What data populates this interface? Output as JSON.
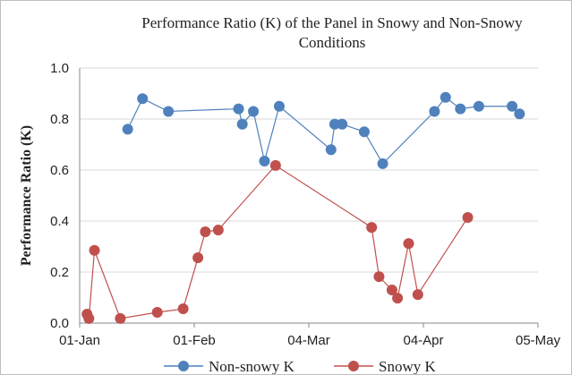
{
  "chart_data": {
    "type": "line",
    "title": "Performance Ratio (K) of the Panel in Snowy and Non-Snowy Conditions",
    "ylabel": "Performance Ratio (K)",
    "xlim": [
      0,
      124
    ],
    "xticks": [
      {
        "value": 0,
        "label": "01-Jan"
      },
      {
        "value": 31,
        "label": "01-Feb"
      },
      {
        "value": 62,
        "label": "04-Mar"
      },
      {
        "value": 93,
        "label": "04-Apr"
      },
      {
        "value": 124,
        "label": "05-May"
      }
    ],
    "ylim": [
      0,
      1
    ],
    "yticks": [
      {
        "value": 0,
        "label": "0.0"
      },
      {
        "value": 0.2,
        "label": "0.2"
      },
      {
        "value": 0.4,
        "label": "0.4"
      },
      {
        "value": 0.6,
        "label": "0.6"
      },
      {
        "value": 0.8,
        "label": "0.8"
      },
      {
        "value": 1,
        "label": "1.0"
      }
    ],
    "grid": true,
    "legend": "bottom",
    "series": [
      {
        "name": "Non-snowy K",
        "color": "#4f81bd",
        "x": [
          13,
          17,
          24,
          43,
          44,
          47,
          50,
          54,
          68,
          69,
          71,
          77,
          82,
          96,
          99,
          103,
          108,
          117,
          119
        ],
        "values": [
          0.76,
          0.88,
          0.83,
          0.84,
          0.78,
          0.83,
          0.635,
          0.85,
          0.68,
          0.78,
          0.78,
          0.75,
          0.625,
          0.83,
          0.885,
          0.84,
          0.85,
          0.85,
          0.82
        ]
      },
      {
        "name": "Snowy K",
        "color": "#c0504d",
        "x": [
          2,
          2.5,
          4,
          11,
          21,
          28,
          32,
          34,
          37.5,
          53,
          79,
          81,
          84.5,
          86,
          89,
          91.5,
          105
        ],
        "values": [
          0.035,
          0.018,
          0.285,
          0.018,
          0.042,
          0.056,
          0.256,
          0.358,
          0.365,
          0.618,
          0.375,
          0.182,
          0.13,
          0.098,
          0.312,
          0.112,
          0.414
        ]
      }
    ]
  }
}
